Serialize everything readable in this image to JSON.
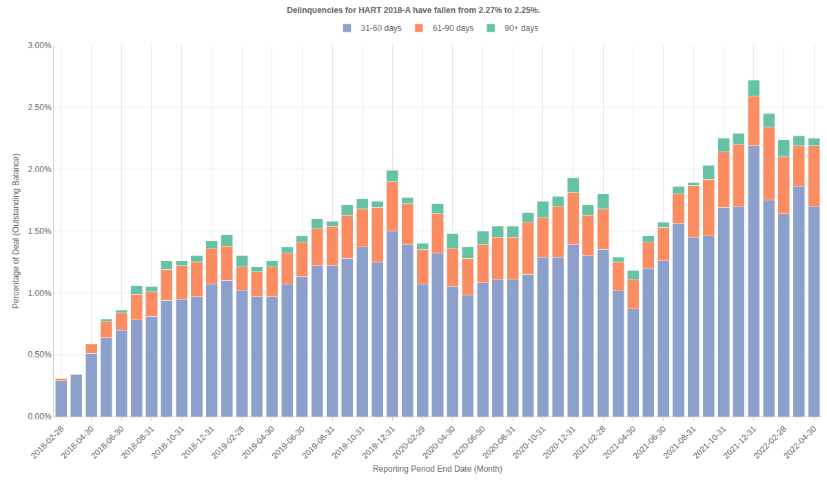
{
  "chart_data": {
    "type": "bar",
    "title": "Delinquencies for HART 2018-A have fallen from 2.27% to 2.25%.",
    "x_label": "Reporting Period End Date (Month)",
    "y_label": "Percentage of Deal (Outstanding Balance)",
    "stacked": true,
    "grid": true,
    "legend": "top",
    "categories": [
      "2018-02-28",
      null,
      "2018-04-30",
      null,
      "2018-06-30",
      null,
      "2018-08-31",
      null,
      "2018-10-31",
      null,
      "2018-12-31",
      null,
      "2019-02-28",
      null,
      "2019-04-30",
      null,
      "2019-06-30",
      null,
      "2019-08-31",
      null,
      "2019-10-31",
      null,
      "2019-12-31",
      null,
      "2020-02-29",
      null,
      "2020-04-30",
      null,
      "2020-06-30",
      null,
      "2020-08-31",
      null,
      "2020-10-31",
      null,
      "2020-12-31",
      null,
      "2021-02-28",
      null,
      "2021-04-30",
      null,
      "2021-06-30",
      null,
      "2021-08-31",
      null,
      "2021-10-31",
      null,
      "2021-12-31",
      null,
      "2022-02-28",
      null,
      "2022-04-30"
    ],
    "series": [
      {
        "name": "31-60 days",
        "color": "#8da0cb",
        "values": [
          0.29,
          0.34,
          0.51,
          0.64,
          0.7,
          0.78,
          0.81,
          0.94,
          0.95,
          0.97,
          1.07,
          1.1,
          1.02,
          0.97,
          0.97,
          1.07,
          1.13,
          1.22,
          1.22,
          1.28,
          1.37,
          1.25,
          1.5,
          1.39,
          1.07,
          1.32,
          1.05,
          0.98,
          1.08,
          1.11,
          1.11,
          1.15,
          1.29,
          1.29,
          1.39,
          1.3,
          1.35,
          1.02,
          0.87,
          1.2,
          1.26,
          1.56,
          1.45,
          1.46,
          1.69,
          1.7,
          2.19,
          1.75,
          1.64,
          1.86,
          1.7
        ]
      },
      {
        "name": "61-90 days",
        "color": "#fc8d62",
        "values": [
          0.02,
          0,
          0.08,
          0.13,
          0.14,
          0.21,
          0.2,
          0.25,
          0.27,
          0.28,
          0.29,
          0.28,
          0.19,
          0.2,
          0.24,
          0.25,
          0.28,
          0.3,
          0.32,
          0.35,
          0.31,
          0.44,
          0.4,
          0.33,
          0.28,
          0.32,
          0.31,
          0.3,
          0.31,
          0.34,
          0.34,
          0.42,
          0.32,
          0.41,
          0.42,
          0.33,
          0.33,
          0.23,
          0.24,
          0.21,
          0.27,
          0.24,
          0.42,
          0.46,
          0.45,
          0.5,
          0.4,
          0.59,
          0.46,
          0.33,
          0.49
        ]
      },
      {
        "name": "90+ days",
        "color": "#66c2a5",
        "values": [
          0,
          0,
          0,
          0.02,
          0.02,
          0.07,
          0.04,
          0.07,
          0.04,
          0.05,
          0.06,
          0.09,
          0.09,
          0.04,
          0.05,
          0.05,
          0.05,
          0.08,
          0.04,
          0.08,
          0.08,
          0.05,
          0.09,
          0.05,
          0.05,
          0.08,
          0.12,
          0.09,
          0.11,
          0.09,
          0.09,
          0.08,
          0.13,
          0.08,
          0.12,
          0.08,
          0.12,
          0.04,
          0.07,
          0.05,
          0.04,
          0.06,
          0.02,
          0.11,
          0.11,
          0.09,
          0.13,
          0.11,
          0.14,
          0.08,
          0.06
        ]
      }
    ],
    "ylim": [
      0,
      3
    ],
    "yticks": [
      {
        "value": 0,
        "label": "0.00%"
      },
      {
        "value": 0.5,
        "label": "0.50%"
      },
      {
        "value": 1,
        "label": "1.00%"
      },
      {
        "value": 1.5,
        "label": "1.50%"
      },
      {
        "value": 2,
        "label": "2.00%"
      },
      {
        "value": 2.5,
        "label": "2.50%"
      },
      {
        "value": 3,
        "label": "3.00%"
      }
    ]
  }
}
